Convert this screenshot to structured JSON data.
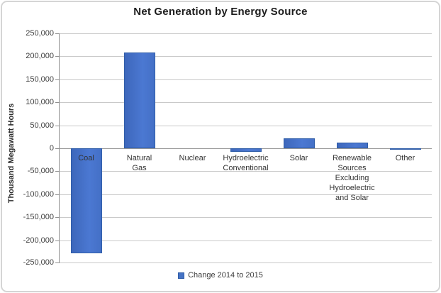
{
  "chart_data": {
    "type": "bar",
    "title": "Net Generation by Energy Source",
    "xlabel": "",
    "ylabel": "Thousand Megawatt Hours",
    "categories": [
      "Coal",
      "Natural Gas",
      "Nuclear",
      "Hydroelectric Conventional",
      "Solar",
      "Renewable Sources Excluding Hydroelectric and Solar",
      "Other"
    ],
    "category_label_lines": [
      [
        "Coal"
      ],
      [
        "Natural",
        "Gas"
      ],
      [
        "Nuclear"
      ],
      [
        "Hydroelectric",
        "Conventional"
      ],
      [
        "Solar"
      ],
      [
        "Renewable",
        "Sources",
        "Excluding",
        "Hydroelectric",
        "and Solar"
      ],
      [
        "Other"
      ]
    ],
    "series": [
      {
        "name": "Change 2014 to 2015",
        "values": [
          -229000,
          209000,
          0,
          -8000,
          21000,
          12000,
          -2000
        ]
      }
    ],
    "ylim": [
      -250000,
      250000
    ],
    "y_ticks": [
      250000,
      200000,
      150000,
      100000,
      50000,
      0,
      -50000,
      -100000,
      -150000,
      -200000,
      -250000
    ],
    "y_tick_labels": [
      "250,000",
      "200,000",
      "150,000",
      "100,000",
      "50,000",
      "0",
      "-50,000",
      "-100,000",
      "-150,000",
      "-200,000",
      "-250,000"
    ],
    "grid": true,
    "legend_position": "bottom",
    "legend": [
      "Change 2014 to 2015"
    ],
    "colors": {
      "bar_fill": "#4472C4",
      "bar_border": "#2F5DA8",
      "gridline": "#C9C9C9",
      "axis_line": "#8F8F8F",
      "tick_text": "#3D3D3D",
      "title_text": "#1C1C1C"
    }
  }
}
